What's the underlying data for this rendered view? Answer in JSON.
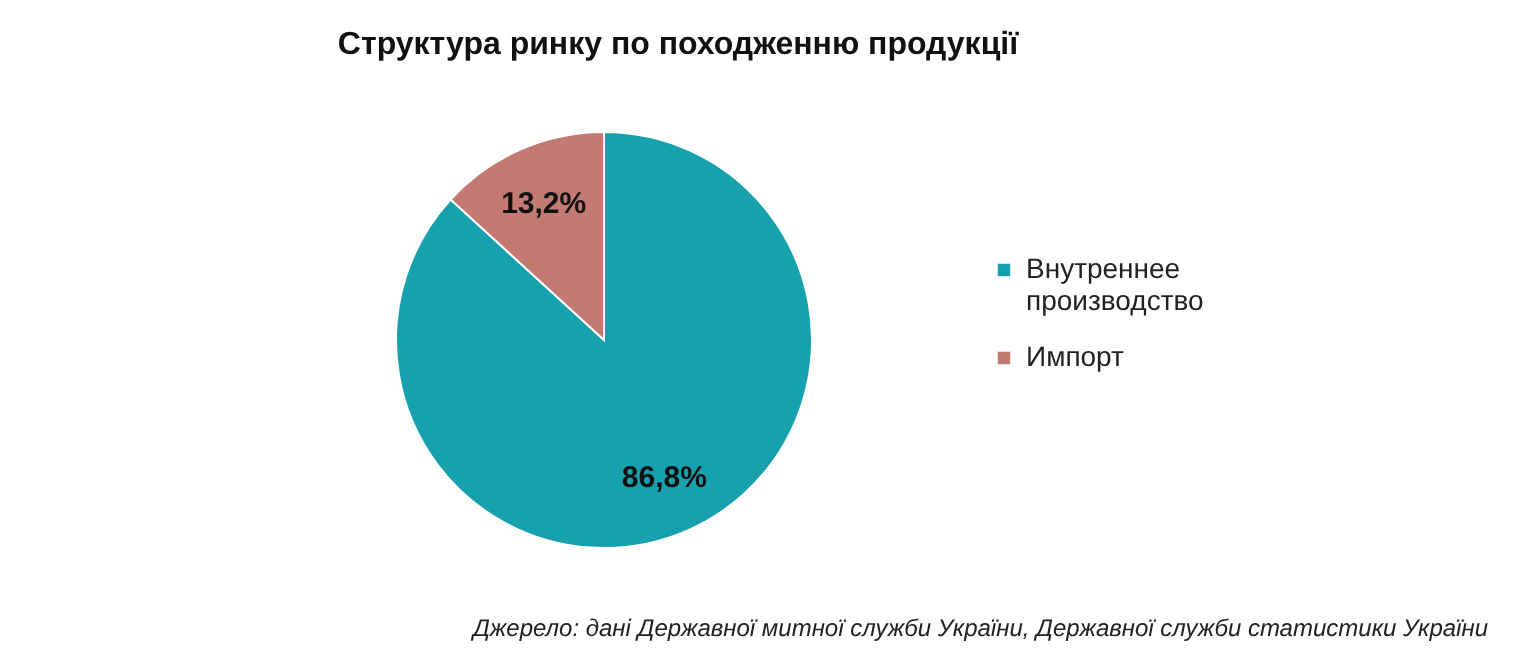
{
  "chart_data": {
    "type": "pie",
    "title": "Структура ринку по походженню продукції",
    "categories": [
      "Внутреннее производство",
      "Импорт"
    ],
    "values": [
      86.8,
      13.2
    ],
    "colors": [
      "#17a0ae",
      "#c27a72"
    ],
    "value_labels": [
      "86,8%",
      "13,2%"
    ],
    "legend": "right",
    "annotations": [
      "Джерело: дані Державної митної служби України, Державної служби статистики України"
    ]
  }
}
